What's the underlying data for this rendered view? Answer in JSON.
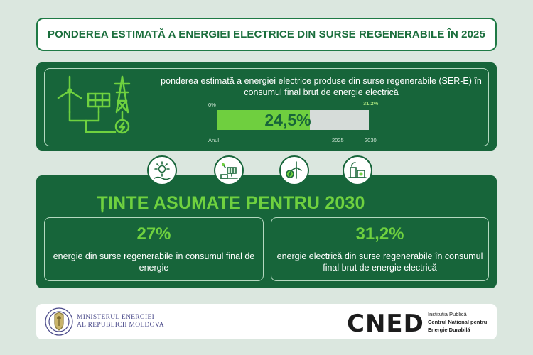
{
  "title": "PONDEREA ESTIMATĂ A ENERGIEI ELECTRICE DIN SURSE REGENERABILE ÎN 2025",
  "top_panel": {
    "description": "ponderea estimată a energiei electrice produse din surse regenerabile (SER-E) în consumul final brut de energie electrică",
    "bar": {
      "start_label": "0%",
      "target_label": "31,2%",
      "value_label": "24,5%",
      "value": 24.5,
      "target": 31.2,
      "year_axis_label": "Anul",
      "year_current": "2025",
      "year_target": "2030"
    }
  },
  "icons": [
    "solar-sun-icon",
    "solar-panel-icon",
    "wind-turbine-icon",
    "factory-icon"
  ],
  "targets": {
    "heading": "ȚINTE ASUMATE PENTRU 2030",
    "items": [
      {
        "value": "27%",
        "description": "energie din surse regenerabile în consumul final de energie"
      },
      {
        "value": "31,2%",
        "description": "energie electrică din surse regenerabile în consumul final brut de energie electrică"
      }
    ]
  },
  "footer": {
    "ministry_line1": "MINISTERUL ENERGIEI",
    "ministry_line2": "AL REPUBLICII MOLDOVA",
    "cned_logo": "CNED",
    "cned_line1": "Instituția Publică",
    "cned_line2": "Centrul Național pentru",
    "cned_line3": "Energie Durabilă"
  },
  "colors": {
    "background": "#dbe7df",
    "panel_green": "#17653a",
    "accent_green": "#6fd13f",
    "bar_track": "#d6dcd9"
  }
}
